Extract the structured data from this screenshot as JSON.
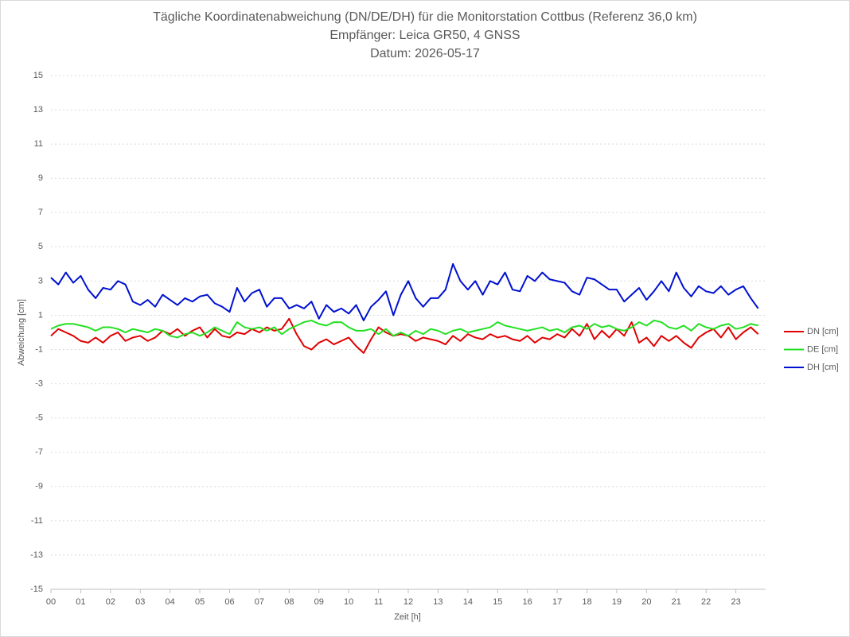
{
  "chart_data": {
    "type": "line",
    "title": "Tägliche Koordinatenabweichung (DN/DE/DH) für die Monitorstation Cottbus (Referenz 36,0 km)",
    "subtitle": "Empfänger: Leica GR50, 4 GNSS",
    "date": "Datum: 2026-05-17",
    "x_label": "Zeit [h]",
    "y_label": "Abweichung [cm]",
    "xlim": [
      0,
      24
    ],
    "xticks": [
      {
        "value": 0,
        "label": "00"
      },
      {
        "value": 1,
        "label": "01"
      },
      {
        "value": 2,
        "label": "02"
      },
      {
        "value": 3,
        "label": "03"
      },
      {
        "value": 4,
        "label": "04"
      },
      {
        "value": 5,
        "label": "05"
      },
      {
        "value": 6,
        "label": "06"
      },
      {
        "value": 7,
        "label": "07"
      },
      {
        "value": 8,
        "label": "08"
      },
      {
        "value": 9,
        "label": "09"
      },
      10,
      11,
      12,
      13,
      14,
      15,
      16,
      17,
      18,
      19,
      20,
      21,
      22,
      23
    ],
    "ylim": [
      -15,
      15
    ],
    "yticks": [
      15,
      13,
      11,
      9,
      7,
      5,
      3,
      1,
      -1,
      -3,
      -5,
      -7,
      -9,
      -11,
      -13,
      -15
    ],
    "grid": true,
    "legend": "right",
    "x": [
      0,
      0.25,
      0.5,
      0.75,
      1,
      1.25,
      1.5,
      1.75,
      2,
      2.25,
      2.5,
      2.75,
      3,
      3.25,
      3.5,
      3.75,
      4,
      4.25,
      4.5,
      4.75,
      5,
      5.25,
      5.5,
      5.75,
      6,
      6.25,
      6.5,
      6.75,
      7,
      7.25,
      7.5,
      7.75,
      8,
      8.25,
      8.5,
      8.75,
      9,
      9.25,
      9.5,
      9.75,
      10,
      10.25,
      10.5,
      10.75,
      11,
      11.25,
      11.5,
      11.75,
      12,
      12.25,
      12.5,
      12.75,
      13,
      13.25,
      13.5,
      13.75,
      14,
      14.25,
      14.5,
      14.75,
      15,
      15.25,
      15.5,
      15.75,
      16,
      16.25,
      16.5,
      16.75,
      17,
      17.25,
      17.5,
      17.75,
      18,
      18.25,
      18.5,
      18.75,
      19,
      19.25,
      19.5,
      19.75,
      20,
      20.25,
      20.5,
      20.75,
      21,
      21.25,
      21.5,
      21.75,
      22,
      22.25,
      22.5,
      22.75,
      23,
      23.25,
      23.5,
      23.75
    ],
    "series": [
      {
        "name": "DN [cm]",
        "color": "#e00000",
        "values": [
          -0.2,
          0.2,
          0.0,
          -0.2,
          -0.5,
          -0.6,
          -0.3,
          -0.6,
          -0.2,
          0.0,
          -0.5,
          -0.3,
          -0.2,
          -0.5,
          -0.3,
          0.1,
          -0.1,
          0.2,
          -0.2,
          0.1,
          0.3,
          -0.3,
          0.2,
          -0.2,
          -0.3,
          0.0,
          -0.1,
          0.2,
          0.0,
          0.3,
          0.1,
          0.2,
          0.8,
          -0.1,
          -0.8,
          -1.0,
          -0.6,
          -0.4,
          -0.7,
          -0.5,
          -0.3,
          -0.8,
          -1.2,
          -0.4,
          0.3,
          0.0,
          -0.2,
          -0.1,
          -0.2,
          -0.5,
          -0.3,
          -0.4,
          -0.5,
          -0.7,
          -0.2,
          -0.5,
          -0.1,
          -0.3,
          -0.4,
          -0.1,
          -0.3,
          -0.2,
          -0.4,
          -0.5,
          -0.2,
          -0.6,
          -0.3,
          -0.4,
          -0.1,
          -0.3,
          0.2,
          -0.2,
          0.5,
          -0.4,
          0.1,
          -0.3,
          0.2,
          -0.2,
          0.6,
          -0.6,
          -0.3,
          -0.8,
          -0.2,
          -0.5,
          -0.2,
          -0.6,
          -0.9,
          -0.3,
          0.0,
          0.2,
          -0.3,
          0.3,
          -0.4,
          0.0,
          0.3,
          -0.1
        ]
      },
      {
        "name": "DE [cm]",
        "color": "#22e022",
        "values": [
          0.2,
          0.4,
          0.5,
          0.5,
          0.4,
          0.3,
          0.1,
          0.3,
          0.3,
          0.2,
          0.0,
          0.2,
          0.1,
          0.0,
          0.2,
          0.1,
          -0.2,
          -0.3,
          -0.1,
          0.0,
          -0.2,
          0.0,
          0.3,
          0.1,
          -0.1,
          0.6,
          0.3,
          0.2,
          0.3,
          0.1,
          0.3,
          -0.1,
          0.2,
          0.4,
          0.6,
          0.7,
          0.5,
          0.4,
          0.6,
          0.6,
          0.3,
          0.1,
          0.1,
          0.2,
          -0.1,
          0.2,
          -0.2,
          0.0,
          -0.2,
          0.1,
          -0.1,
          0.2,
          0.1,
          -0.1,
          0.1,
          0.2,
          0.0,
          0.1,
          0.2,
          0.3,
          0.6,
          0.4,
          0.3,
          0.2,
          0.1,
          0.2,
          0.3,
          0.1,
          0.2,
          0.0,
          0.3,
          0.4,
          0.2,
          0.5,
          0.3,
          0.4,
          0.2,
          0.1,
          0.3,
          0.6,
          0.4,
          0.7,
          0.6,
          0.3,
          0.2,
          0.4,
          0.1,
          0.5,
          0.3,
          0.2,
          0.4,
          0.5,
          0.2,
          0.3,
          0.5,
          0.4
        ]
      },
      {
        "name": "DH [cm]",
        "color": "#0010d0",
        "values": [
          3.2,
          2.8,
          3.5,
          2.9,
          3.3,
          2.5,
          2.0,
          2.6,
          2.5,
          3.0,
          2.8,
          1.8,
          1.6,
          1.9,
          1.5,
          2.2,
          1.9,
          1.6,
          2.0,
          1.8,
          2.1,
          2.2,
          1.7,
          1.5,
          1.2,
          2.6,
          1.8,
          2.3,
          2.5,
          1.5,
          2.0,
          2.0,
          1.4,
          1.6,
          1.4,
          1.8,
          0.8,
          1.6,
          1.2,
          1.4,
          1.1,
          1.6,
          0.7,
          1.5,
          1.9,
          2.4,
          1.0,
          2.2,
          3.0,
          2.0,
          1.5,
          2.0,
          2.0,
          2.5,
          4.0,
          3.0,
          2.5,
          3.0,
          2.2,
          3.0,
          2.8,
          3.5,
          2.5,
          2.4,
          3.3,
          3.0,
          3.5,
          3.1,
          3.0,
          2.9,
          2.4,
          2.2,
          3.2,
          3.1,
          2.8,
          2.5,
          2.5,
          1.8,
          2.2,
          2.6,
          1.9,
          2.4,
          3.0,
          2.4,
          3.5,
          2.6,
          2.1,
          2.7,
          2.4,
          2.3,
          2.7,
          2.2,
          2.5,
          2.7,
          2.0,
          1.4
        ]
      }
    ]
  }
}
